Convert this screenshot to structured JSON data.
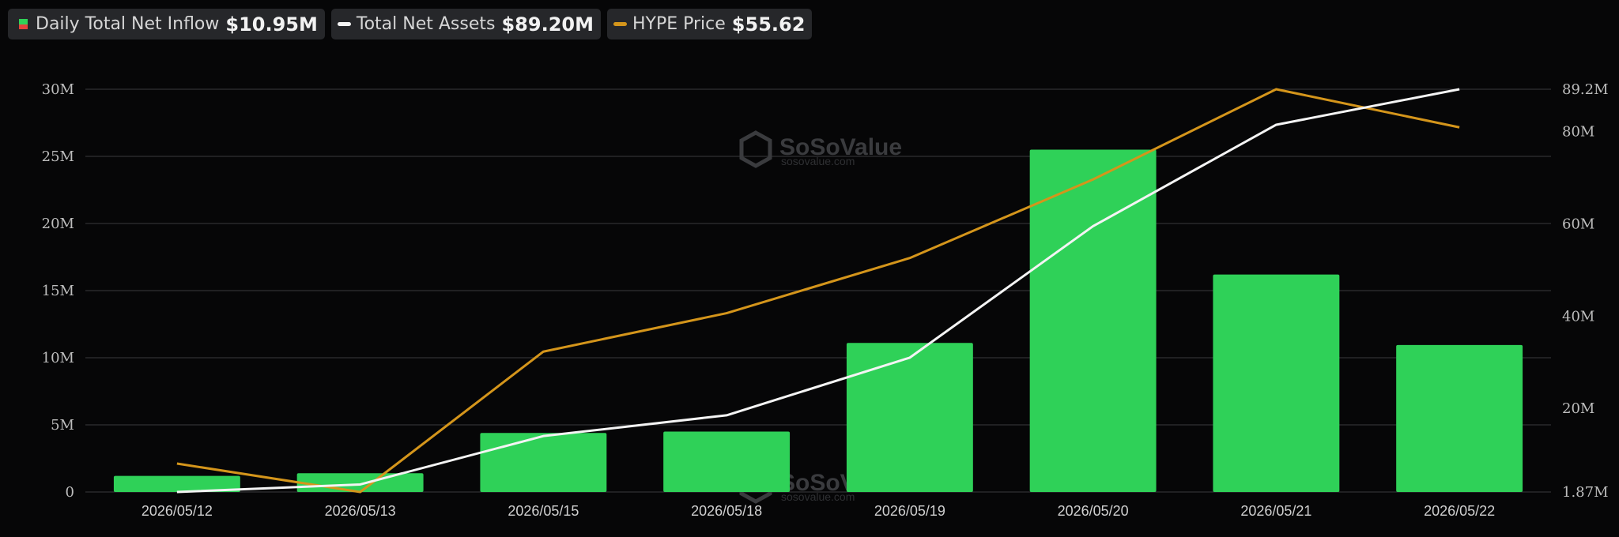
{
  "legend": {
    "inflow": {
      "label": "Daily Total Net Inflow",
      "value": "$10.95M"
    },
    "assets": {
      "label": "Total Net Assets",
      "value": "$89.20M"
    },
    "price": {
      "label": "HYPE Price",
      "value": "$55.62"
    }
  },
  "watermark": {
    "name": "SoSoValue",
    "url": "sosovalue.com"
  },
  "colors": {
    "inflow_bar": "#2fd158",
    "inflow_negative": "#e5413d",
    "assets_line": "#f4f4f4",
    "price_line": "#d4951b",
    "grid": "#3a3a3d"
  },
  "chart_data": {
    "type": "bar",
    "categories": [
      "2026/05/12",
      "2026/05/13",
      "2026/05/15",
      "2026/05/18",
      "2026/05/19",
      "2026/05/20",
      "2026/05/21",
      "2026/05/22"
    ],
    "series": [
      {
        "name": "Daily Total Net Inflow",
        "kind": "bar",
        "axis": "left",
        "values": [
          1.2,
          1.4,
          4.4,
          4.5,
          11.1,
          25.5,
          16.2,
          10.95
        ]
      },
      {
        "name": "Total Net Assets",
        "kind": "line",
        "axis": "right",
        "values": [
          1.87,
          3.5,
          14.0,
          18.5,
          31.0,
          59.5,
          81.5,
          89.2
        ]
      },
      {
        "name": "HYPE Price",
        "kind": "line",
        "axis": "price",
        "values": [
          35.5,
          33.8,
          42.2,
          44.5,
          47.8,
          52.5,
          57.9,
          55.62
        ]
      }
    ],
    "left_axis": {
      "ticks": [
        0,
        5,
        10,
        15,
        20,
        25,
        30
      ],
      "tick_labels": [
        "0",
        "5M",
        "10M",
        "15M",
        "20M",
        "25M",
        "30M"
      ],
      "range": [
        0,
        30
      ]
    },
    "right_axis": {
      "ticks": [
        1.87,
        20,
        40,
        60,
        80,
        89.2
      ],
      "tick_labels": [
        "1.87M",
        "20M",
        "40M",
        "60M",
        "80M",
        "89.2M"
      ],
      "range": [
        1.87,
        89.2
      ]
    },
    "price_axis_range": [
      33.8,
      57.9
    ],
    "grid": true,
    "legend_position": "top-left"
  }
}
